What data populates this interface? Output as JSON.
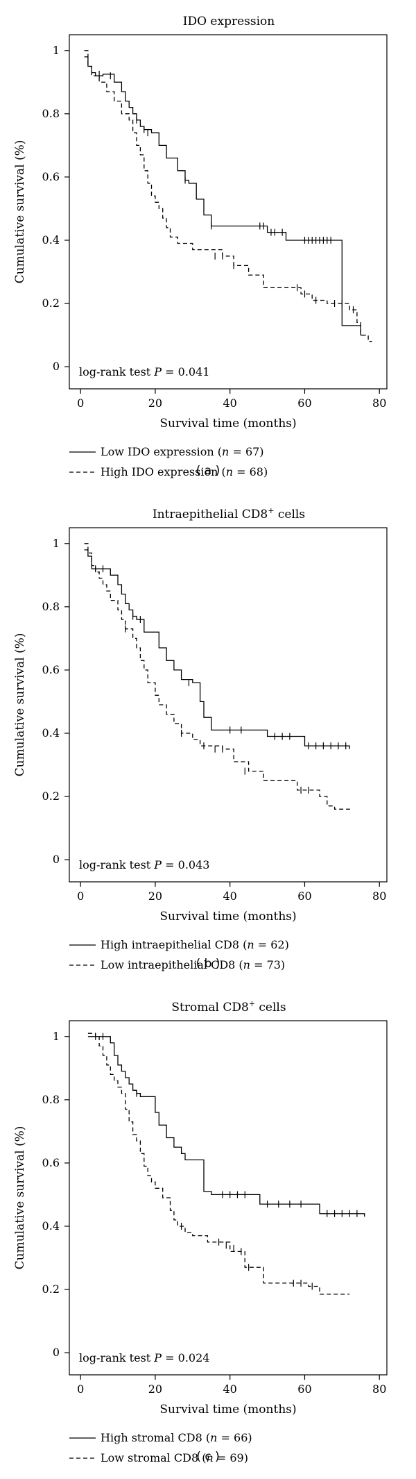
{
  "chart_data": [
    {
      "type": "line",
      "panel": "a",
      "caption": "( a )",
      "title": "IDO expression",
      "xlabel": "Survival time (months)",
      "ylabel": "Cumulative survival (%)",
      "xlim": [
        -3,
        82
      ],
      "ylim": [
        -0.07,
        1.05
      ],
      "xticks": [
        0,
        20,
        40,
        60,
        80
      ],
      "yticks": [
        0,
        0.2,
        0.4,
        0.6,
        0.8,
        1
      ],
      "ytick_labels": [
        "0",
        "0.2",
        "0.4",
        "0.6",
        "0.8",
        "1"
      ],
      "annotation_prefix": "log-rank test ",
      "annotation_p": "P",
      "annotation_value": " = 0.041",
      "legend": [
        {
          "pre": "Low IDO expression (",
          "n": "n",
          "post": " = 67)",
          "style": "solid"
        },
        {
          "pre": "High IDO expression (",
          "n": "n",
          "post": " = 68)",
          "style": "dashed"
        }
      ],
      "series": [
        {
          "name": "Low IDO expression (n = 67)",
          "style": "solid",
          "x": [
            1,
            2,
            3,
            4,
            6,
            9,
            11,
            12,
            13,
            14,
            15,
            16,
            17,
            19,
            21,
            23,
            26,
            28,
            29,
            31,
            33,
            35,
            50,
            55,
            70,
            75,
            76
          ],
          "y": [
            0.98,
            0.95,
            0.93,
            0.92,
            0.925,
            0.9,
            0.87,
            0.84,
            0.82,
            0.8,
            0.78,
            0.76,
            0.75,
            0.74,
            0.7,
            0.66,
            0.62,
            0.59,
            0.58,
            0.53,
            0.48,
            0.445,
            0.425,
            0.4,
            0.13,
            0.1,
            0.1
          ],
          "censor_x": [
            5,
            8,
            15,
            17,
            18,
            28,
            35,
            48,
            49,
            51,
            52,
            54,
            60,
            61,
            62,
            63,
            64,
            65,
            66,
            67
          ],
          "censor_y": [
            0.925,
            0.92,
            0.78,
            0.75,
            0.74,
            0.59,
            0.445,
            0.445,
            0.445,
            0.425,
            0.425,
            0.425,
            0.4,
            0.4,
            0.4,
            0.4,
            0.4,
            0.4,
            0.4,
            0.4
          ]
        },
        {
          "name": "High IDO expression (n = 68)",
          "style": "dashed",
          "x": [
            1,
            2,
            3,
            5,
            7,
            9,
            11,
            13,
            14,
            15,
            16,
            17,
            18,
            19,
            20,
            21,
            22,
            23,
            24,
            26,
            30,
            38,
            41,
            45,
            49,
            59,
            62,
            66,
            68,
            72,
            74,
            75,
            77,
            78
          ],
          "y": [
            1.0,
            0.95,
            0.92,
            0.9,
            0.87,
            0.84,
            0.8,
            0.78,
            0.74,
            0.7,
            0.67,
            0.62,
            0.58,
            0.54,
            0.52,
            0.5,
            0.47,
            0.44,
            0.41,
            0.39,
            0.37,
            0.35,
            0.32,
            0.29,
            0.25,
            0.23,
            0.21,
            0.2,
            0.2,
            0.18,
            0.14,
            0.1,
            0.08,
            0.08
          ],
          "censor_x": [
            36,
            38,
            41,
            58,
            60,
            63,
            68,
            70,
            73
          ],
          "censor_y": [
            0.35,
            0.35,
            0.32,
            0.25,
            0.23,
            0.21,
            0.2,
            0.2,
            0.18
          ]
        }
      ]
    },
    {
      "type": "line",
      "panel": "b",
      "caption": "( b )",
      "title_main": "Intraepithelial CD8",
      "title_sup": "+",
      "title_tail": " cells",
      "xlabel": "Survival time (months)",
      "ylabel": "Cumulative survival (%)",
      "xlim": [
        -3,
        82
      ],
      "ylim": [
        -0.07,
        1.05
      ],
      "xticks": [
        0,
        20,
        40,
        60,
        80
      ],
      "yticks": [
        0,
        0.2,
        0.4,
        0.6,
        0.8,
        1
      ],
      "ytick_labels": [
        "0",
        "0.2",
        "0.4",
        "0.6",
        "0.8",
        "1"
      ],
      "annotation_prefix": "log-rank test ",
      "annotation_p": "P",
      "annotation_value": " = 0.043",
      "legend": [
        {
          "pre": "High intraepithelial CD8 (",
          "n": "n",
          "post": " = 62)",
          "style": "solid"
        },
        {
          "pre": "Low intraepithelial CD8 (",
          "n": "n",
          "post": " = 73)",
          "style": "dashed"
        }
      ],
      "series": [
        {
          "name": "High intraepithelial CD8 (n = 62)",
          "style": "solid",
          "x": [
            1,
            2,
            3,
            8,
            10,
            11,
            12,
            13,
            14,
            15,
            17,
            19,
            21,
            23,
            25,
            27,
            30,
            32,
            33,
            35,
            50,
            58,
            60,
            72
          ],
          "y": [
            0.98,
            0.96,
            0.92,
            0.9,
            0.87,
            0.84,
            0.81,
            0.79,
            0.77,
            0.76,
            0.72,
            0.72,
            0.67,
            0.63,
            0.6,
            0.57,
            0.56,
            0.5,
            0.45,
            0.41,
            0.39,
            0.39,
            0.36,
            0.35
          ],
          "censor_x": [
            4,
            6,
            14,
            16,
            29,
            40,
            43,
            52,
            54,
            56,
            61,
            63,
            65,
            67,
            69,
            71
          ],
          "censor_y": [
            0.92,
            0.92,
            0.77,
            0.76,
            0.56,
            0.41,
            0.41,
            0.39,
            0.39,
            0.39,
            0.36,
            0.36,
            0.36,
            0.36,
            0.36,
            0.36
          ]
        },
        {
          "name": "Low intraepithelial CD8 (n = 73)",
          "style": "dashed",
          "x": [
            1,
            2,
            3,
            4,
            5,
            6,
            7,
            8,
            10,
            11,
            12,
            14,
            15,
            16,
            17,
            18,
            20,
            21,
            23,
            25,
            27,
            30,
            32,
            38,
            41,
            45,
            49,
            58,
            62,
            64,
            66,
            68,
            72
          ],
          "y": [
            1.0,
            0.97,
            0.93,
            0.91,
            0.89,
            0.87,
            0.85,
            0.82,
            0.79,
            0.76,
            0.73,
            0.7,
            0.67,
            0.63,
            0.6,
            0.56,
            0.52,
            0.49,
            0.46,
            0.43,
            0.4,
            0.38,
            0.36,
            0.35,
            0.31,
            0.28,
            0.25,
            0.22,
            0.22,
            0.2,
            0.17,
            0.16,
            0.155
          ],
          "censor_x": [
            12,
            27,
            33,
            36,
            38,
            44,
            59,
            61
          ],
          "censor_y": [
            0.73,
            0.4,
            0.36,
            0.35,
            0.35,
            0.28,
            0.22,
            0.22
          ]
        }
      ]
    },
    {
      "type": "line",
      "panel": "c",
      "caption": "( c )",
      "title_main": "Stromal CD8",
      "title_sup": "+",
      "title_tail": " cells",
      "xlabel": "Survival time (months)",
      "ylabel": "Cumulative survival (%)",
      "xlim": [
        -3,
        82
      ],
      "ylim": [
        -0.07,
        1.05
      ],
      "xticks": [
        0,
        20,
        40,
        60,
        80
      ],
      "yticks": [
        0,
        0.2,
        0.4,
        0.6,
        0.8,
        1
      ],
      "ytick_labels": [
        "0",
        "0.2",
        "0.4",
        "0.6",
        "0.8",
        "1"
      ],
      "annotation_prefix": "log-rank test ",
      "annotation_p": "P",
      "annotation_value": " = 0.024",
      "legend": [
        {
          "pre": "High stromal CD8 (",
          "n": "n",
          "post": " = 66)",
          "style": "solid"
        },
        {
          "pre": "Low stromal CD8 (",
          "n": "n",
          "post": " = 69)",
          "style": "dashed"
        }
      ],
      "series": [
        {
          "name": "High stromal CD8 (n = 66)",
          "style": "solid",
          "x": [
            2,
            8,
            9,
            10,
            11,
            12,
            13,
            14,
            15,
            16,
            17,
            18,
            20,
            21,
            23,
            25,
            27,
            28,
            30,
            33,
            35,
            48,
            64,
            76
          ],
          "y": [
            1.0,
            0.98,
            0.94,
            0.91,
            0.89,
            0.87,
            0.85,
            0.83,
            0.82,
            0.81,
            0.81,
            0.81,
            0.76,
            0.72,
            0.68,
            0.65,
            0.63,
            0.61,
            0.61,
            0.51,
            0.5,
            0.47,
            0.44,
            0.43
          ],
          "censor_x": [
            4,
            6,
            15,
            38,
            40,
            42,
            44,
            50,
            53,
            56,
            59,
            66,
            68,
            70,
            72,
            74
          ],
          "censor_y": [
            1.0,
            1.0,
            0.82,
            0.5,
            0.5,
            0.5,
            0.5,
            0.47,
            0.47,
            0.47,
            0.47,
            0.44,
            0.44,
            0.44,
            0.44,
            0.44
          ]
        },
        {
          "name": "Low stromal CD8 (n = 69)",
          "style": "dashed",
          "x": [
            2,
            4,
            5,
            6,
            7,
            8,
            9,
            10,
            11,
            12,
            13,
            14,
            15,
            16,
            17,
            18,
            19,
            20,
            22,
            24,
            25,
            26,
            28,
            30,
            34,
            40,
            44,
            49,
            61,
            64,
            72
          ],
          "y": [
            1.01,
            1.0,
            0.97,
            0.94,
            0.91,
            0.88,
            0.86,
            0.84,
            0.82,
            0.77,
            0.73,
            0.69,
            0.67,
            0.63,
            0.59,
            0.56,
            0.54,
            0.52,
            0.49,
            0.45,
            0.42,
            0.4,
            0.38,
            0.37,
            0.35,
            0.32,
            0.27,
            0.22,
            0.21,
            0.185,
            0.185
          ],
          "censor_x": [
            27,
            37,
            39,
            41,
            43,
            45,
            57,
            59,
            62
          ],
          "censor_y": [
            0.4,
            0.35,
            0.34,
            0.33,
            0.32,
            0.27,
            0.22,
            0.22,
            0.21
          ]
        }
      ]
    }
  ]
}
